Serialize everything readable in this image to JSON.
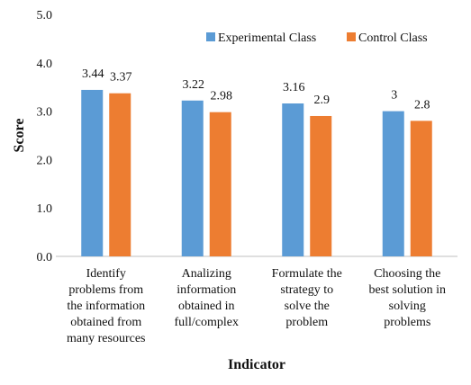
{
  "chart_data": {
    "type": "bar",
    "title": "",
    "xlabel": "Indicator",
    "ylabel": "Score",
    "ylim": [
      0,
      5
    ],
    "yticks": [
      "0.0",
      "1.0",
      "2.0",
      "3.0",
      "4.0",
      "5.0"
    ],
    "grid": false,
    "legend_position": "top-right",
    "categories": [
      [
        "Identify",
        "problems from",
        "the information",
        "obtained from",
        "many resources"
      ],
      [
        "Analizing",
        "information",
        "obtained in",
        "full/complex"
      ],
      [
        "Formulate the",
        "strategy to",
        "solve the",
        "problem"
      ],
      [
        "Choosing the",
        "best solution in",
        "solving",
        "problems"
      ]
    ],
    "series": [
      {
        "name": "Experimental Class",
        "color": "#5B9BD5",
        "values": [
          3.44,
          3.22,
          3.16,
          3
        ],
        "labels": [
          "3.44",
          "3.22",
          "3.16",
          "3"
        ]
      },
      {
        "name": "Control Class",
        "color": "#ED7D31",
        "values": [
          3.37,
          2.98,
          2.9,
          2.8
        ],
        "labels": [
          "3.37",
          "2.98",
          "2.9",
          "2.8"
        ]
      }
    ]
  }
}
